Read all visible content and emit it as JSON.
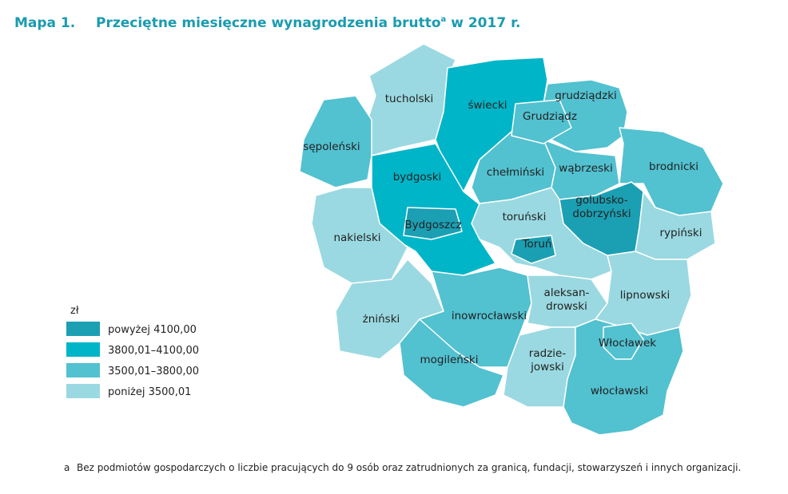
{
  "header": {
    "number": "Mapa 1.",
    "title": "Przeciętne miesięczne wynagrodzenia brutto",
    "sup": "a",
    "suffix": " w 2017 r."
  },
  "legend": {
    "unit": "zł",
    "items": [
      {
        "label": "powyżej 4100,00",
        "color": "#1b9fb3"
      },
      {
        "label": "3800,01–4100,00",
        "color": "#00b5c8"
      },
      {
        "label": "3500,01–3800,00",
        "color": "#52c1d0"
      },
      {
        "label": "poniżej 3500,01",
        "color": "#9ad9e1"
      }
    ]
  },
  "regions": [
    {
      "label": [
        "tucholski"
      ],
      "class": 3
    },
    {
      "label": [
        "świecki"
      ],
      "class": 1
    },
    {
      "label": [
        "grudziądzki"
      ],
      "class": 2
    },
    {
      "label": [
        "sępoleński"
      ],
      "class": 2
    },
    {
      "label": [
        "bydgoski"
      ],
      "class": 1
    },
    {
      "label": [
        "chełmiński"
      ],
      "class": 2
    },
    {
      "label": [
        "wąbrzeski"
      ],
      "class": 2
    },
    {
      "label": [
        "brodnicki"
      ],
      "class": 2
    },
    {
      "label": [
        "toruński"
      ],
      "class": 3
    },
    {
      "label": [
        "golubsko-",
        "dobrzyński"
      ],
      "class": 0
    },
    {
      "label": [
        "rypiński"
      ],
      "class": 3
    },
    {
      "label": [
        "nakielski"
      ],
      "class": 3
    },
    {
      "label": [
        "żniński"
      ],
      "class": 3
    },
    {
      "label": [
        "inowrocławski"
      ],
      "class": 2
    },
    {
      "label": [
        "mogileński"
      ],
      "class": 2
    },
    {
      "label": [
        "aleksan-",
        "drowski"
      ],
      "class": 3
    },
    {
      "label": [
        "lipnowski"
      ],
      "class": 3
    },
    {
      "label": [
        "radzie-",
        "jowski"
      ],
      "class": 3
    },
    {
      "label": [
        "włocławski"
      ],
      "class": 2
    },
    {
      "label": [
        "Grudziądz"
      ],
      "class": 2
    },
    {
      "label": [
        "Bydgoszcz"
      ],
      "class": 0
    },
    {
      "label": [
        "Toruń"
      ],
      "class": 0
    },
    {
      "label": [
        "Włocławek"
      ],
      "class": 2
    }
  ],
  "footnote": {
    "mark": "a",
    "text": "Bez podmiotów gospodarczych o liczbie pracujących do 9 osób oraz zatrudnionych za granicą, fundacji, stowarzyszeń i innych organizacji."
  }
}
